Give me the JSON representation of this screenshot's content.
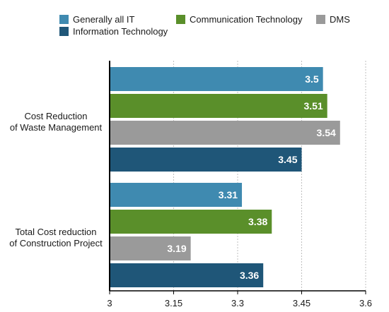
{
  "chart_data": {
    "type": "bar",
    "orientation": "horizontal",
    "title": "",
    "xlabel": "",
    "ylabel": "",
    "xlim": [
      3,
      3.6
    ],
    "xticks": [
      3,
      3.15,
      3.3,
      3.45,
      3.6
    ],
    "xtick_labels": [
      "3",
      "3.15",
      "3.3",
      "3.45",
      "3.6"
    ],
    "grid": "vertical",
    "legend_position": "top",
    "categories": [
      "Cost Reduction\nof Waste Management",
      "Total Cost reduction\nof Construction Project"
    ],
    "series": [
      {
        "name": "Generally all IT",
        "color": "#3f8ab0",
        "values": [
          3.5,
          3.31
        ],
        "labels": [
          "3.5",
          "3.31"
        ]
      },
      {
        "name": "Communication Technology",
        "color": "#5a8f2a",
        "values": [
          3.51,
          3.38
        ],
        "labels": [
          "3.51",
          "3.38"
        ]
      },
      {
        "name": "DMS",
        "color": "#9a9a9a",
        "values": [
          3.54,
          3.19
        ],
        "labels": [
          "3.54",
          "3.19"
        ]
      },
      {
        "name": "Information Technology",
        "color": "#1f5678",
        "values": [
          3.45,
          3.36
        ],
        "labels": [
          "3.45",
          "3.36"
        ]
      }
    ]
  }
}
